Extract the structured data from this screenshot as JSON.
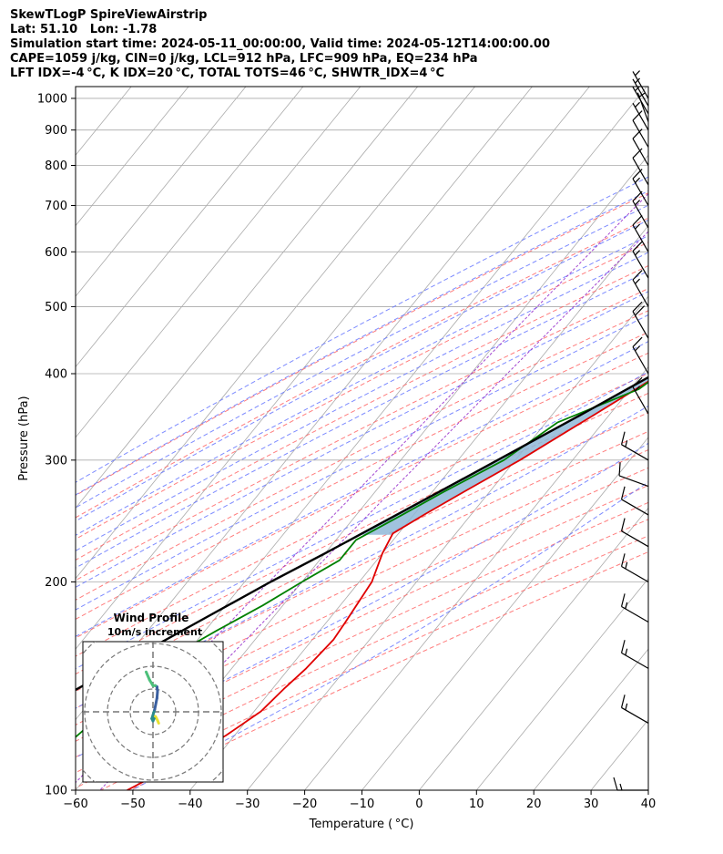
{
  "header": {
    "lines": [
      "SkewTLogP SpireViewAirstrip",
      "Lat: 51.10   Lon: -1.78",
      "Simulation start time: 2024-05-11_00:00:00, Valid time: 2024-05-12T14:00:00.00",
      "CAPE=1059 j/kg, CIN=0 j/kg, LCL=912 hPa, LFC=909 hPa, EQ=234 hPa",
      "LFT IDX=-4 °C, K IDX=20 °C, TOTAL TOTS=46 °C, SHWTR_IDX=4 °C"
    ]
  },
  "colors": {
    "temperature": "#e00000",
    "dewpoint": "#008000",
    "parcel": "#000000",
    "cape_fill": "#8fb8d8",
    "cin_fill": "#f0a0a0",
    "dry_adiabat": "#ff6666",
    "moist_adiabat": "#6677ff",
    "mixing_ratio": "#9933cc",
    "isotherm": "#aaaaaa",
    "isobar": "#aaaaaa",
    "hodograph_ring": "#777777"
  },
  "chart_data": [
    {
      "type": "line",
      "subtype": "skew-t log-p",
      "xlabel": "Temperature ( °C)",
      "ylabel": "Pressure (hPa)",
      "xlim": [
        -60,
        40
      ],
      "ylim": [
        1040,
        100
      ],
      "y_scale": "log",
      "x_ticks": [
        -60,
        -50,
        -40,
        -30,
        -20,
        -10,
        0,
        10,
        20,
        30,
        40
      ],
      "y_ticks": [
        100,
        200,
        300,
        400,
        500,
        600,
        700,
        800,
        900,
        1000
      ],
      "grid": true,
      "series": [
        {
          "key": "temperature",
          "pressure": [
            1000,
            960,
            925,
            910,
            875,
            850,
            800,
            750,
            700,
            650,
            600,
            550,
            500,
            450,
            400,
            350,
            300,
            270,
            250,
            235,
            220,
            200,
            175,
            165,
            150,
            140,
            130,
            120,
            110,
            100
          ],
          "values": [
            22.3,
            19.2,
            18.4,
            17.2,
            16.0,
            15.0,
            12.5,
            10.0,
            6.8,
            3.6,
            0.0,
            -3.2,
            -7.3,
            -11.8,
            -16.8,
            -22.5,
            -29.2,
            -34.5,
            -38.2,
            -41.0,
            -40.0,
            -37.8,
            -36.7,
            -36.3,
            -37.0,
            -38.0,
            -38.8,
            -41.5,
            -45.5,
            -51.0
          ]
        },
        {
          "key": "dewpoint",
          "pressure": [
            1000,
            960,
            940,
            925,
            910,
            890,
            875,
            850,
            800,
            750,
            700,
            650,
            600,
            550,
            500,
            450,
            400,
            380,
            340,
            300,
            270,
            250,
            230,
            215,
            200,
            185,
            170,
            160,
            150,
            130,
            110,
            100
          ],
          "values": [
            17.2,
            17.0,
            15.0,
            13.0,
            9.5,
            7.5,
            5.5,
            4.5,
            2.0,
            0.5,
            -1.0,
            0.5,
            -1.0,
            -4.5,
            -9.0,
            -12.0,
            -17.0,
            -18.5,
            -28.0,
            -32.0,
            -38.0,
            -42.0,
            -46.5,
            -46.5,
            -50.0,
            -53.5,
            -58.0,
            -61.0,
            -63.0,
            -66.0,
            -69.0,
            -71.0
          ]
        },
        {
          "key": "parcel",
          "pressure": [
            1000,
            960,
            930,
            912,
            900,
            850,
            800,
            750,
            700,
            650,
            600,
            550,
            500,
            450,
            400,
            350,
            300,
            270,
            250,
            234,
            220,
            200,
            175,
            150,
            125,
            100
          ],
          "values": [
            22.5,
            19.0,
            17.5,
            17.0,
            16.6,
            14.6,
            12.3,
            9.8,
            7.1,
            4.1,
            0.8,
            -2.9,
            -7.1,
            -12.1,
            -17.9,
            -24.8,
            -33.1,
            -38.8,
            -43.0,
            -46.6,
            -50.0,
            -55.5,
            -62.5,
            -70.5,
            -80.0,
            -92.0
          ]
        }
      ],
      "shaded_regions": [
        {
          "key": "cape",
          "pressure_range": [
            909,
            234
          ]
        },
        {
          "key": "cin",
          "pressure_range": [
            1000,
            909
          ]
        }
      ],
      "background_lines": [
        {
          "key": "dry_adiabat",
          "theta_K": [
            250,
            260,
            270,
            280,
            290,
            300,
            310,
            320,
            330,
            340,
            350,
            360,
            370,
            380,
            390,
            400,
            410,
            420,
            430
          ]
        },
        {
          "key": "moist_adiabat",
          "theta_w_C": [
            -30,
            -25,
            -20,
            -15,
            -10,
            -5,
            0,
            5,
            10,
            15,
            20,
            25,
            30,
            35
          ]
        },
        {
          "key": "mixing_ratio",
          "g_per_kg": [
            0.1,
            0.2
          ]
        }
      ],
      "wind_barbs": {
        "pressure": [
          100,
          125,
          150,
          175,
          200,
          225,
          250,
          275,
          300,
          350,
          400,
          450,
          500,
          550,
          600,
          650,
          700,
          750,
          800,
          850,
          900,
          925,
          950,
          975,
          1000
        ],
        "speed_kt": [
          15,
          15,
          15,
          15,
          15,
          10,
          10,
          10,
          15,
          15,
          15,
          20,
          15,
          15,
          15,
          15,
          15,
          10,
          10,
          10,
          5,
          5,
          5,
          5,
          5
        ],
        "direction_deg": [
          270,
          300,
          300,
          300,
          300,
          300,
          300,
          290,
          300,
          330,
          330,
          330,
          330,
          330,
          330,
          330,
          330,
          330,
          330,
          330,
          330,
          340,
          330,
          330,
          330
        ]
      }
    },
    {
      "type": "scatter",
      "subtype": "hodograph",
      "title": "Wind Profile",
      "subtitle": "10m/s increment",
      "ring_increment_ms": 10,
      "rings": 4,
      "u": [
        5.0,
        4.0,
        3.0,
        2.0,
        1.0,
        0.0,
        -1.0,
        1.5,
        3.5,
        4.0,
        3.5,
        2.0,
        0.0,
        -3.0,
        -6.0
      ],
      "v": [
        -10.0,
        -7.5,
        -5.5,
        -4.0,
        -6.0,
        -8.0,
        -6.0,
        2.0,
        12.0,
        18.0,
        22.0,
        23.0,
        23.0,
        28.0,
        35.0
      ]
    }
  ]
}
